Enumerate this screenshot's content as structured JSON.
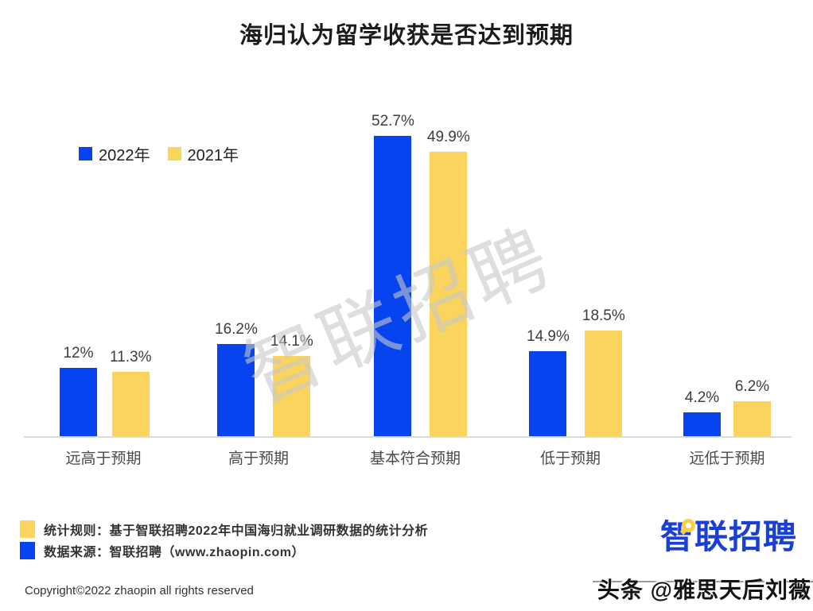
{
  "title": "海归认为留学收获是否达到预期",
  "chart_data": {
    "type": "bar",
    "categories": [
      "远高于预期",
      "高于预期",
      "基本符合预期",
      "低于预期",
      "远低于预期"
    ],
    "series": [
      {
        "name": "2022年",
        "color": "#0743ee",
        "values": [
          12,
          16.2,
          52.7,
          14.9,
          4.2
        ],
        "labels": [
          "12%",
          "16.2%",
          "52.7%",
          "14.9%",
          "4.2%"
        ]
      },
      {
        "name": "2021年",
        "color": "#fbd45e",
        "values": [
          11.3,
          14.1,
          49.9,
          18.5,
          6.2
        ],
        "labels": [
          "11.3%",
          "14.1%",
          "49.9%",
          "18.5%",
          "6.2%"
        ]
      }
    ],
    "xlabel": "",
    "ylabel": "",
    "ylim": [
      0,
      55
    ],
    "grid": false,
    "legend_position": "top-left",
    "value_labels_shown": true
  },
  "watermarks": {
    "center": "智联招聘",
    "bottom_right": "头条 @雅思天后刘薇"
  },
  "footer": {
    "notes": [
      {
        "color": "#fbd45e",
        "text": "统计规则：基于智联招聘2022年中国海归就业调研数据的统计分析"
      },
      {
        "color": "#0743ee",
        "text": "数据来源：智联招聘（www.zhaopin.com）"
      }
    ],
    "copyright": "Copyright©2022 zhaopin all rights reserved",
    "logo_text": "智联招聘"
  },
  "colors": {
    "bar_2022_blue": "#0743ee",
    "bar_2021_yellow": "#fbd45e",
    "logo_blue": "#1a3fd8",
    "axis_line": "#dbdbdb",
    "watermark_gray": "#c8c8c8"
  }
}
